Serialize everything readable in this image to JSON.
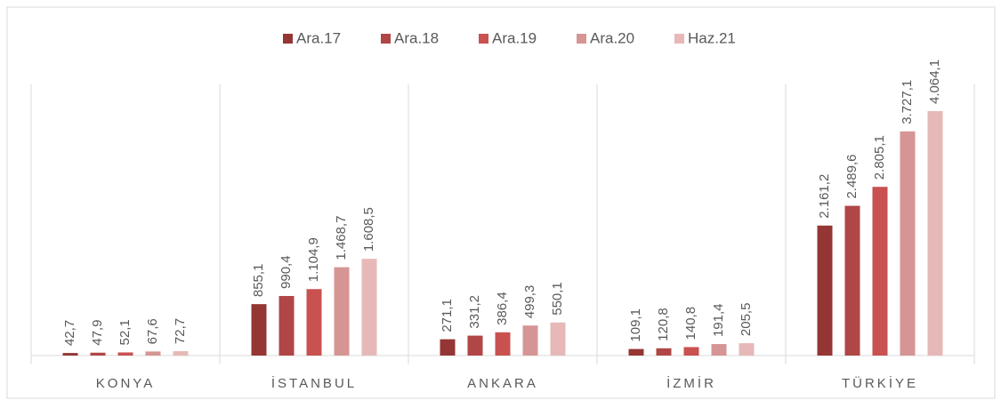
{
  "chart_data": {
    "type": "bar",
    "categories": [
      "KONYA",
      "İSTANBUL",
      "ANKARA",
      "İZMİR",
      "TÜRKİYE"
    ],
    "series": [
      {
        "name": "Ara.17",
        "color": "#943634",
        "values": [
          42.7,
          855.1,
          271.1,
          109.1,
          2161.2
        ],
        "value_labels": [
          "42,7",
          "855,1",
          "271,1",
          "109,1",
          "2.161,2"
        ]
      },
      {
        "name": "Ara.18",
        "color": "#b04646",
        "values": [
          47.9,
          990.4,
          331.2,
          120.8,
          2489.6
        ],
        "value_labels": [
          "47,9",
          "990,4",
          "331,2",
          "120,8",
          "2.489,6"
        ]
      },
      {
        "name": "Ara.19",
        "color": "#c95150",
        "values": [
          52.1,
          1104.9,
          386.4,
          140.8,
          2805.1
        ],
        "value_labels": [
          "52,1",
          "1.104,9",
          "386,4",
          "140,8",
          "2.805,1"
        ]
      },
      {
        "name": "Ara.20",
        "color": "#d59594",
        "values": [
          67.6,
          1468.7,
          499.3,
          191.4,
          3727.1
        ],
        "value_labels": [
          "67,6",
          "1.468,7",
          "499,3",
          "191,4",
          "3.727,1"
        ]
      },
      {
        "name": "Haz.21",
        "color": "#e6b9b8",
        "values": [
          72.7,
          1608.5,
          550.1,
          205.5,
          4064.1
        ],
        "value_labels": [
          "72,7",
          "1.608,5",
          "550,1",
          "205,5",
          "4.064,1"
        ]
      }
    ]
  }
}
